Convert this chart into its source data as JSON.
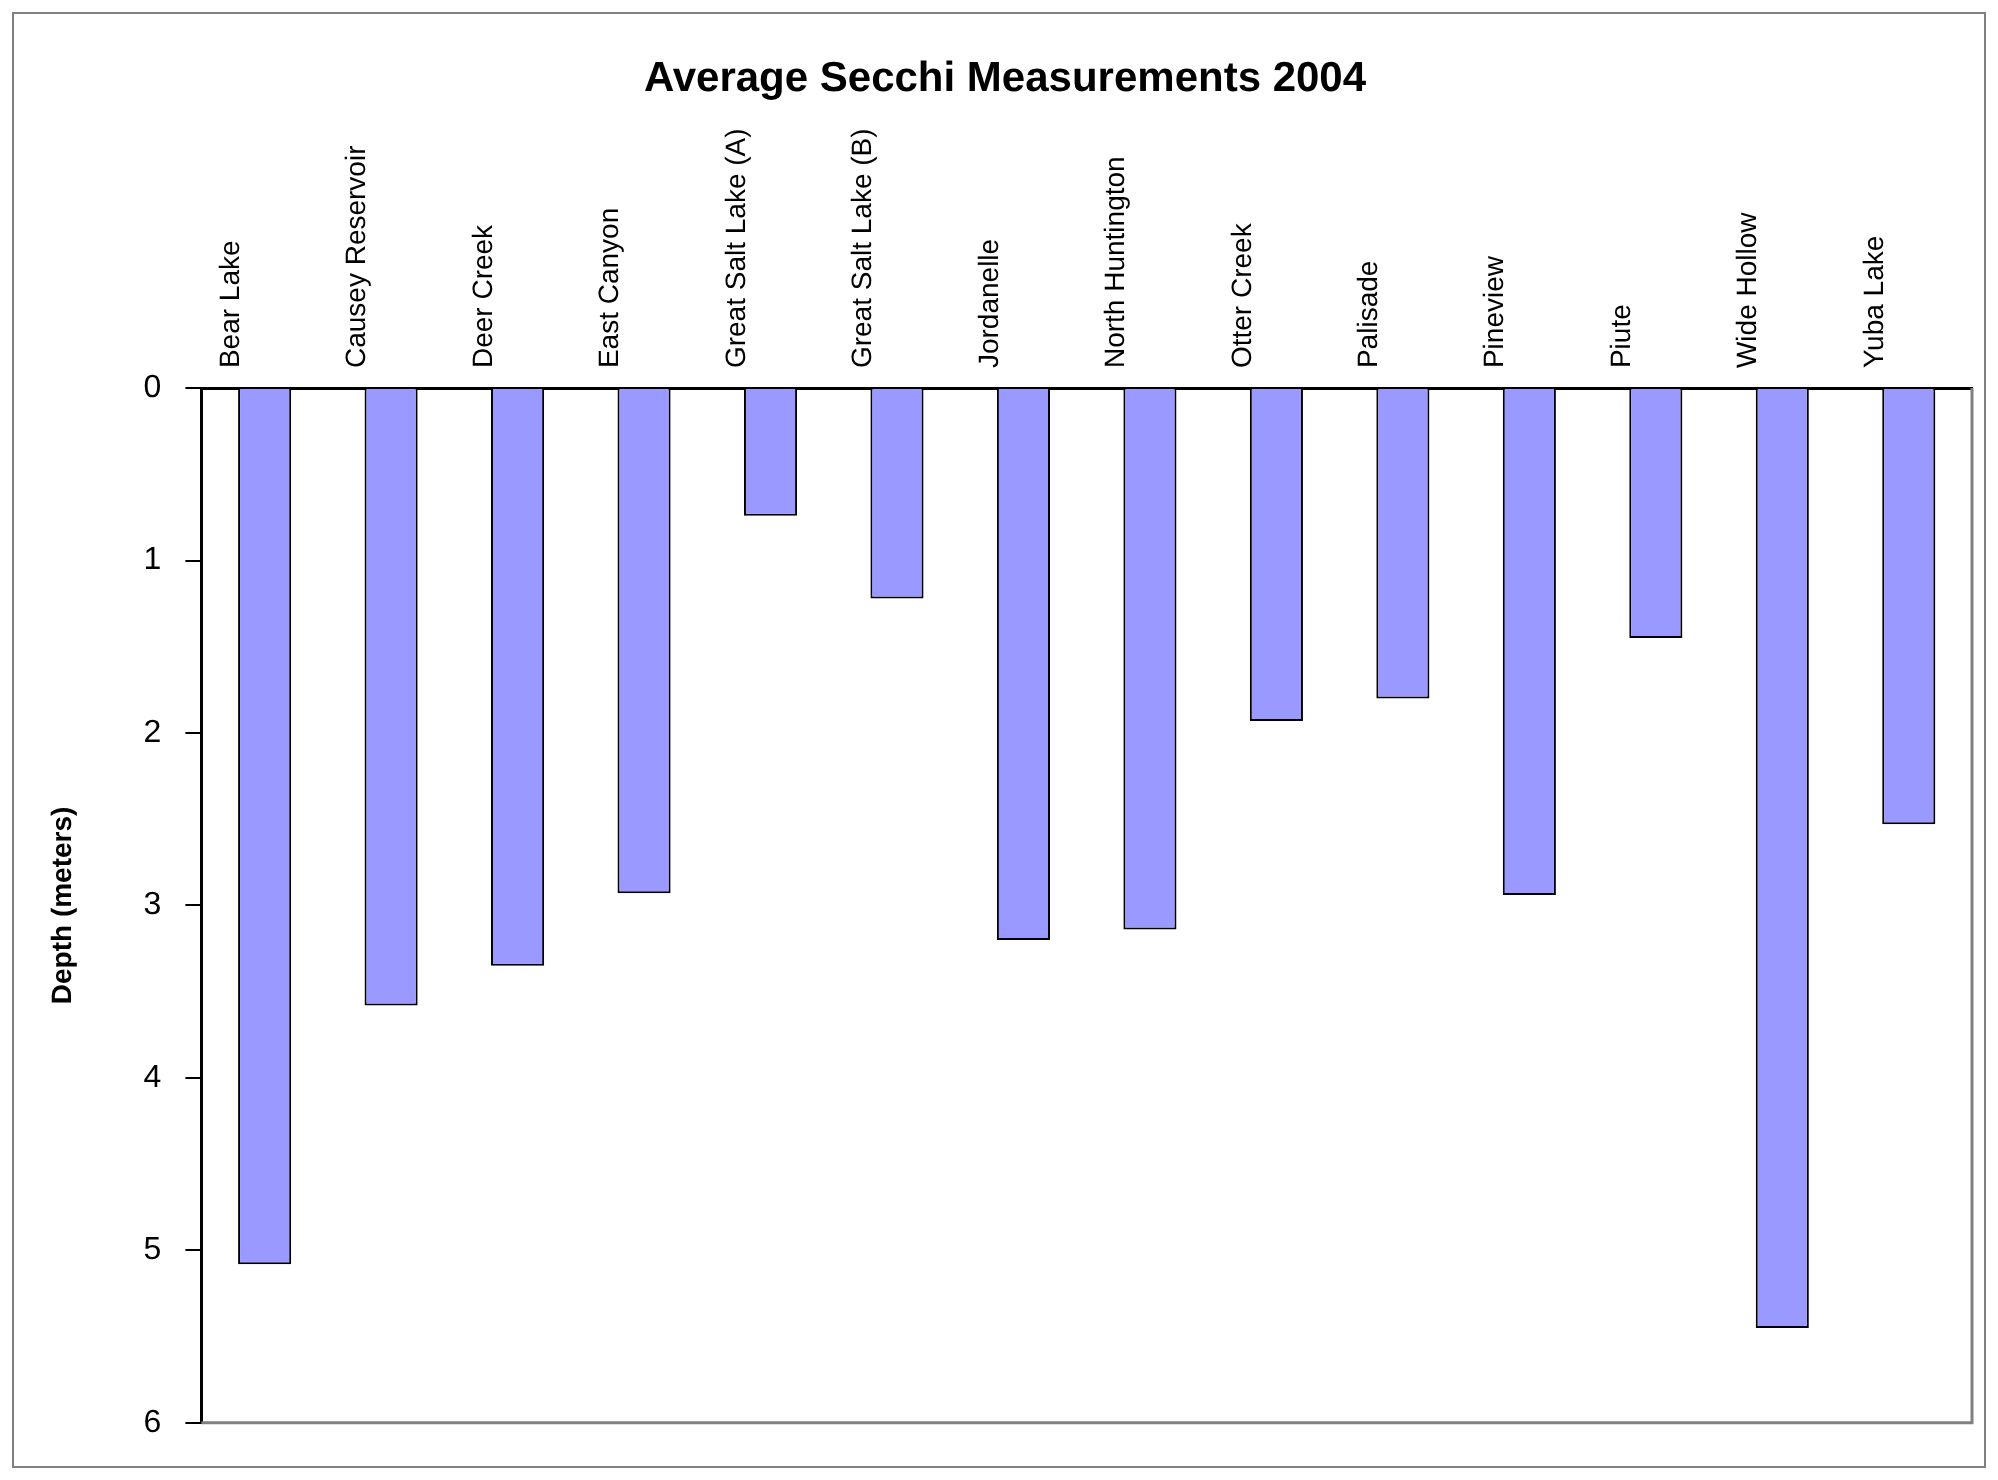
{
  "chart_data": {
    "type": "bar",
    "title": "Average Secchi Measurements 2004",
    "ylabel": "Depth (meters)",
    "categories": [
      "Bear Lake",
      "Causey Reservoir",
      "Deer Creek",
      "East Canyon",
      "Great Salt Lake (A)",
      "Great Salt Lake (B)",
      "Jordanelle",
      "North Huntington",
      "Otter Creek",
      "Palisade",
      "Pineview",
      "Piute",
      "Wide Hollow",
      "Yuba Lake"
    ],
    "values": [
      5.08,
      3.58,
      3.35,
      2.93,
      0.74,
      1.22,
      3.2,
      3.14,
      1.93,
      1.8,
      2.94,
      1.45,
      5.45,
      2.53
    ],
    "color": "#9999ff",
    "ylim": [
      6,
      0
    ],
    "yticks": [
      0,
      1,
      2,
      3,
      4,
      5,
      6
    ],
    "grid": false,
    "legend": false
  }
}
